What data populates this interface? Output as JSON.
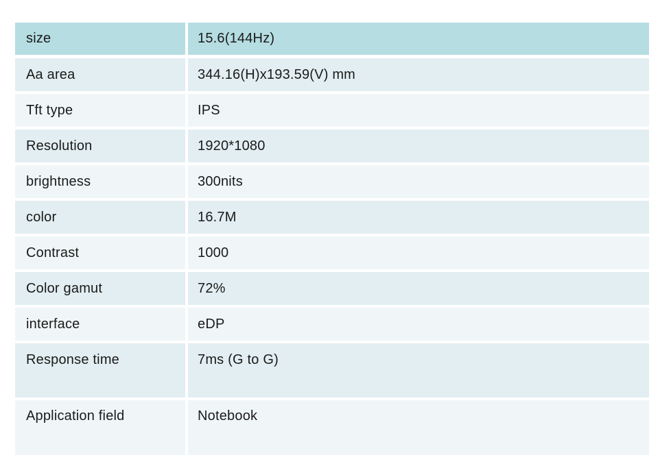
{
  "table": {
    "rows": [
      {
        "label": "size",
        "value": "15.6(144Hz)"
      },
      {
        "label": "Aa area",
        "value": "344.16(H)x193.59(V) mm"
      },
      {
        "label": "Tft type",
        "value": "IPS"
      },
      {
        "label": "Resolution",
        "value": "1920*1080"
      },
      {
        "label": "brightness",
        "value": "300nits"
      },
      {
        "label": "color",
        "value": "16.7M"
      },
      {
        "label": "Contrast",
        "value": "1000"
      },
      {
        "label": "Color gamut",
        "value": "72%"
      },
      {
        "label": "interface",
        "value": "eDP"
      },
      {
        "label": "Response time",
        "value": "7ms (G to G)"
      },
      {
        "label": "Application field",
        "value": "Notebook"
      }
    ],
    "colors": {
      "header_row_bg": "#b5dde2",
      "row_bg_shaded": "#e2eef1",
      "row_bg_light": "#f0f6f8",
      "text": "#1a1a1a",
      "page_bg": "#ffffff"
    }
  }
}
